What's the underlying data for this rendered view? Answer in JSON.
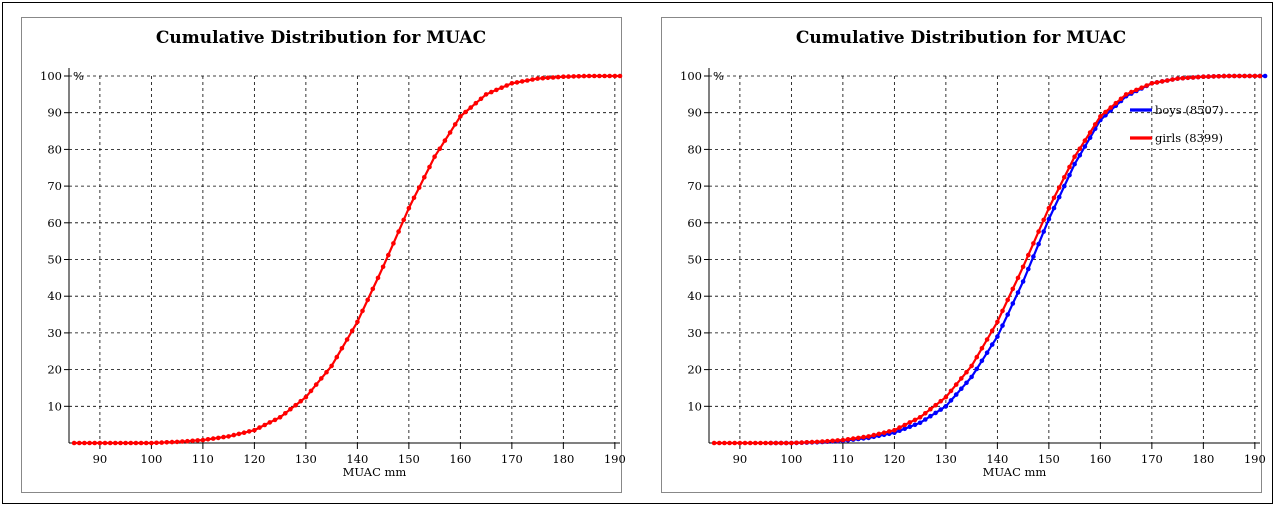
{
  "chart_data": [
    {
      "type": "line",
      "title": "Cumulative Distribution for MUAC",
      "xlabel": "MUAC mm",
      "ylabel": "%",
      "xlim": [
        84,
        191
      ],
      "ylim": [
        0,
        100
      ],
      "x_ticks": [
        90,
        100,
        110,
        120,
        130,
        140,
        150,
        160,
        170,
        180,
        190
      ],
      "y_ticks": [
        10,
        20,
        30,
        40,
        50,
        60,
        70,
        80,
        90,
        100
      ],
      "grid": true,
      "legend": null,
      "series": [
        {
          "color": "#ff0000",
          "points": [
            [
              85,
              0
            ],
            [
              89,
              0
            ],
            [
              94,
              0
            ],
            [
              97,
              0
            ],
            [
              100,
              0
            ],
            [
              105,
              0.3
            ],
            [
              110,
              0.8
            ],
            [
              115,
              1.8
            ],
            [
              120,
              3.5
            ],
            [
              125,
              7
            ],
            [
              130,
              12.5
            ],
            [
              135,
              21
            ],
            [
              140,
              33
            ],
            [
              145,
              48
            ],
            [
              150,
              64
            ],
            [
              155,
              78
            ],
            [
              160,
              89
            ],
            [
              165,
              95
            ],
            [
              170,
              98
            ],
            [
              175,
              99.3
            ],
            [
              180,
              99.8
            ],
            [
              185,
              100
            ],
            [
              191,
              100
            ]
          ]
        }
      ]
    },
    {
      "type": "line",
      "title": "Cumulative Distribution for MUAC",
      "xlabel": "MUAC mm",
      "ylabel": "%",
      "xlim": [
        84,
        191
      ],
      "ylim": [
        0,
        100
      ],
      "x_ticks": [
        90,
        100,
        110,
        120,
        130,
        140,
        150,
        160,
        170,
        180,
        190
      ],
      "y_ticks": [
        10,
        20,
        30,
        40,
        50,
        60,
        70,
        80,
        90,
        100
      ],
      "grid": true,
      "legend": "top-right",
      "series": [
        {
          "name": "boys (8507)",
          "color": "#0000ff",
          "points": [
            [
              96,
              0
            ],
            [
              100,
              0
            ],
            [
              105,
              0.2
            ],
            [
              110,
              0.6
            ],
            [
              115,
              1.4
            ],
            [
              120,
              2.8
            ],
            [
              125,
              5.5
            ],
            [
              130,
              10
            ],
            [
              135,
              18
            ],
            [
              140,
              29
            ],
            [
              145,
              44
            ],
            [
              150,
              61
            ],
            [
              155,
              76
            ],
            [
              160,
              88
            ],
            [
              165,
              94.5
            ],
            [
              170,
              98
            ],
            [
              175,
              99.3
            ],
            [
              180,
              99.8
            ],
            [
              185,
              100
            ],
            [
              189,
              100
            ],
            [
              192,
              100
            ]
          ]
        },
        {
          "name": "girls (8399)",
          "color": "#ff0000",
          "points": [
            [
              85,
              0
            ],
            [
              89,
              0
            ],
            [
              94,
              0
            ],
            [
              97,
              0
            ],
            [
              100,
              0
            ],
            [
              105,
              0.3
            ],
            [
              110,
              0.8
            ],
            [
              115,
              1.8
            ],
            [
              120,
              3.5
            ],
            [
              125,
              7
            ],
            [
              130,
              12.5
            ],
            [
              135,
              21
            ],
            [
              140,
              33
            ],
            [
              145,
              48
            ],
            [
              150,
              64
            ],
            [
              155,
              78
            ],
            [
              160,
              89
            ],
            [
              165,
              95
            ],
            [
              170,
              98
            ],
            [
              175,
              99.3
            ],
            [
              180,
              99.8
            ],
            [
              185,
              100
            ],
            [
              191,
              100
            ]
          ]
        }
      ]
    }
  ]
}
